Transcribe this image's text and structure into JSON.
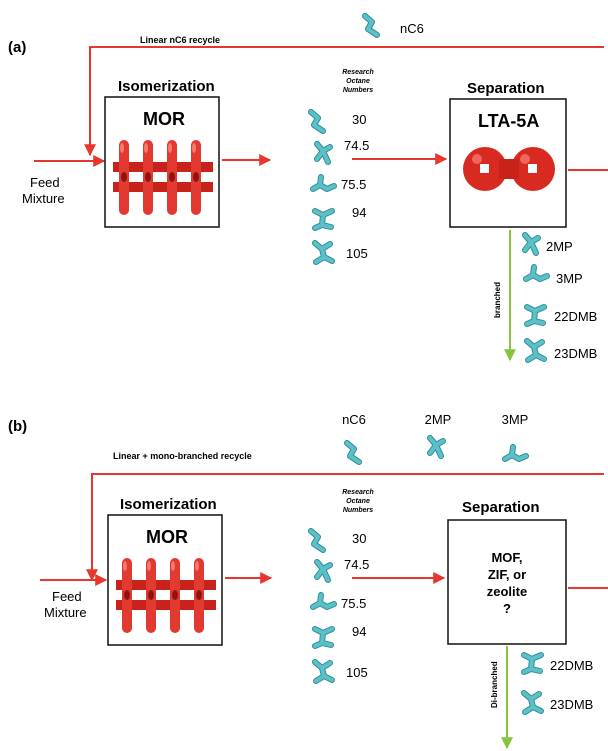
{
  "panel_a": {
    "label": "(a)",
    "recycle_label": "Linear nC6 recycle",
    "recycle_molecule": "nC6",
    "feed_line1": "Feed",
    "feed_line2": "Mixture",
    "isomerization_title": "Isomerization",
    "isomerization_catalyst": "MOR",
    "ron_header": [
      "Research",
      "Octane",
      "Numbers"
    ],
    "ron_values": [
      "30",
      "74.5",
      "75.5",
      "94",
      "105"
    ],
    "separation_title": "Separation",
    "separation_material": "LTA-5A",
    "product_label": "branched",
    "products": [
      "2MP",
      "3MP",
      "22DMB",
      "23DMB"
    ]
  },
  "panel_b": {
    "label": "(b)",
    "recycle_label": "Linear + mono-branched recycle",
    "recycle_molecules": [
      "nC6",
      "2MP",
      "3MP"
    ],
    "feed_line1": "Feed",
    "feed_line2": "Mixture",
    "isomerization_title": "Isomerization",
    "isomerization_catalyst": "MOR",
    "ron_header": [
      "Research",
      "Octane",
      "Numbers"
    ],
    "ron_values": [
      "30",
      "74.5",
      "75.5",
      "94",
      "105"
    ],
    "separation_title": "Separation",
    "separation_question": [
      "MOF,",
      "ZIF, or",
      "zeolite",
      "?"
    ],
    "product_label": "Di-branched",
    "products": [
      "22DMB",
      "23DMB"
    ]
  },
  "colors": {
    "arrow_red": "#e8362f",
    "arrow_green": "#86c340",
    "molecule": "#5bc0c8",
    "framework": "#d92a22"
  }
}
